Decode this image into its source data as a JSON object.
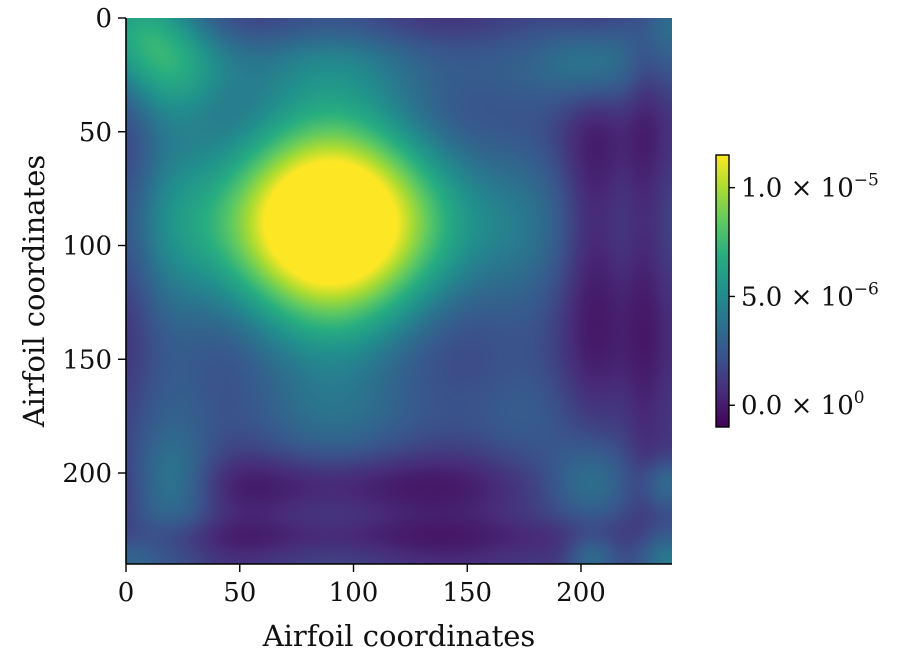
{
  "chart_data": {
    "type": "heatmap",
    "title": "",
    "xlabel": "Airfoil coordinates",
    "ylabel": "Airfoil coordinates",
    "xlim": [
      0,
      240
    ],
    "ylim": [
      240,
      0
    ],
    "x_ticks": [
      0,
      50,
      100,
      150,
      200
    ],
    "y_ticks": [
      0,
      50,
      100,
      150,
      200
    ],
    "colormap": "viridis",
    "colorbar": {
      "range": [
        -1e-06,
        1.15e-05
      ],
      "ticks": [
        {
          "value": 0.0,
          "mantissa": "0.0",
          "exponent": "0"
        },
        {
          "value": 5e-06,
          "mantissa": "5.0",
          "exponent": "−6"
        },
        {
          "value": 1e-05,
          "mantissa": "1.0",
          "exponent": "−5"
        }
      ],
      "times_symbol": "×",
      "base": "10",
      "placement": "right"
    },
    "field_description_peaks": [
      {
        "x": 90,
        "y": 90,
        "value": 1.15e-05
      },
      {
        "x": 20,
        "y": 20,
        "value": 4e-06
      },
      {
        "x": 205,
        "y": 205,
        "value": 5e-06
      },
      {
        "x": 20,
        "y": 205,
        "value": 3.5e-06
      },
      {
        "x": 205,
        "y": 20,
        "value": 3.5e-06
      },
      {
        "x": 0,
        "y": 0,
        "value": 4.5e-06
      },
      {
        "x": 235,
        "y": 235,
        "value": 4.5e-06
      },
      {
        "x": 0,
        "y": 235,
        "value": 2.5e-06
      },
      {
        "x": 235,
        "y": 0,
        "value": 3e-06
      }
    ]
  }
}
